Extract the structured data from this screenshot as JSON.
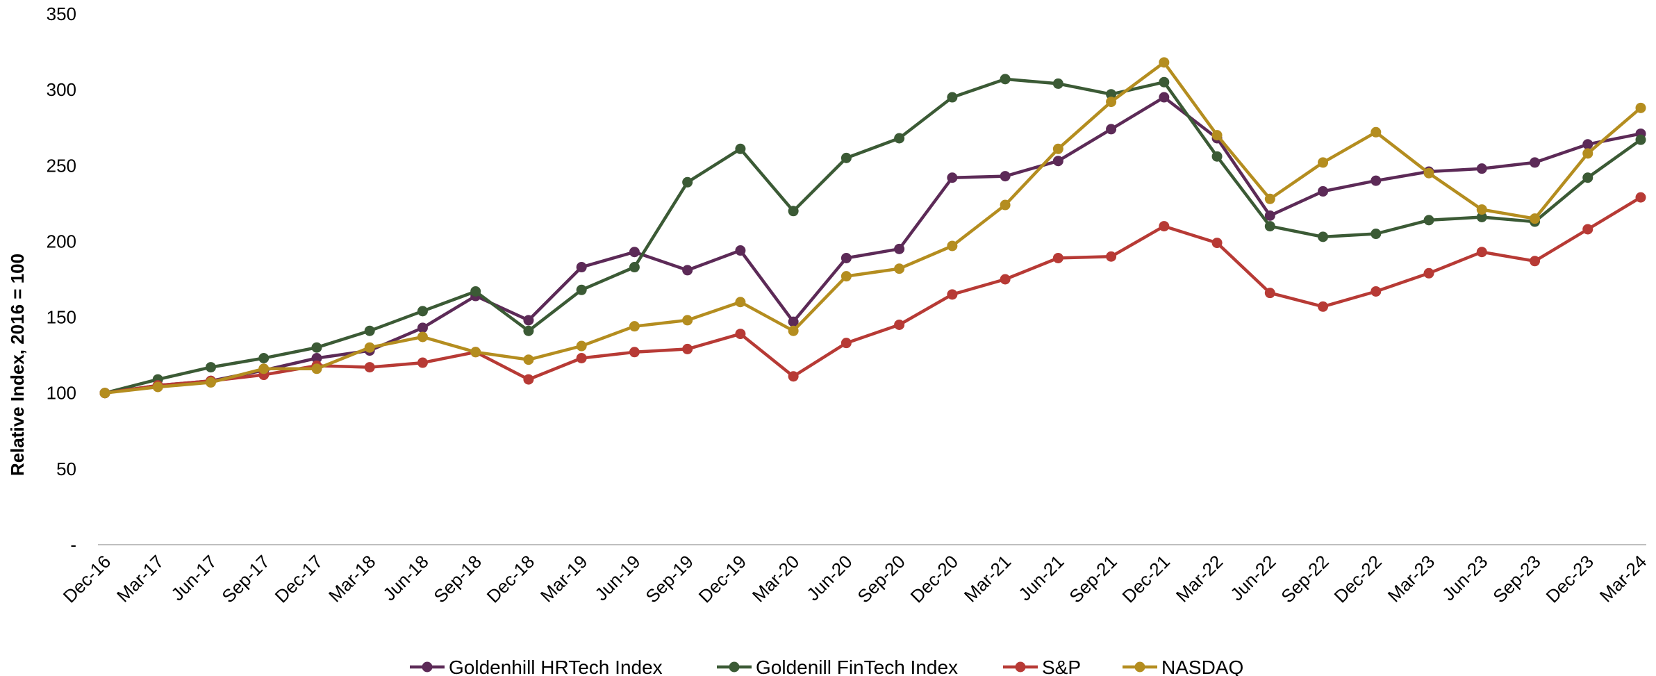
{
  "chart_data": {
    "type": "line",
    "title": "",
    "xlabel": "",
    "ylabel": "Relative Index, 2016 = 100",
    "ylim": [
      0,
      350
    ],
    "yticks": [
      {
        "value": 0,
        "label": "-"
      },
      {
        "value": 50,
        "label": "50"
      },
      {
        "value": 100,
        "label": "100"
      },
      {
        "value": 150,
        "label": "150"
      },
      {
        "value": 200,
        "label": "200"
      },
      {
        "value": 250,
        "label": "250"
      },
      {
        "value": 300,
        "label": "300"
      },
      {
        "value": 350,
        "label": "350"
      }
    ],
    "grid": false,
    "legend_position": "bottom",
    "categories": [
      "Dec-16",
      "Mar-17",
      "Jun-17",
      "Sep-17",
      "Dec-17",
      "Mar-18",
      "Jun-18",
      "Sep-18",
      "Dec-18",
      "Mar-19",
      "Jun-19",
      "Sep-19",
      "Dec-19",
      "Mar-20",
      "Jun-20",
      "Sep-20",
      "Dec-20",
      "Mar-21",
      "Jun-21",
      "Sep-21",
      "Dec-21",
      "Mar-22",
      "Jun-22",
      "Sep-22",
      "Dec-22",
      "Mar-23",
      "Jun-23",
      "Sep-23",
      "Dec-23",
      "Mar-24"
    ],
    "series": [
      {
        "name": "Goldenhill HRTech Index",
        "color": "#5c2a57",
        "values": [
          100,
          105,
          108,
          115,
          123,
          128,
          143,
          164,
          148,
          183,
          193,
          181,
          194,
          147,
          189,
          195,
          242,
          243,
          253,
          274,
          295,
          268,
          217,
          233,
          240,
          246,
          248,
          252,
          264,
          271
        ]
      },
      {
        "name": "Goldenill FinTech Index",
        "color": "#3b5a35",
        "values": [
          100,
          109,
          117,
          123,
          130,
          141,
          154,
          167,
          141,
          168,
          183,
          239,
          261,
          220,
          255,
          268,
          295,
          307,
          304,
          297,
          305,
          256,
          210,
          203,
          205,
          214,
          216,
          213,
          242,
          267
        ]
      },
      {
        "name": "S&P",
        "color": "#b73a35",
        "values": [
          100,
          105,
          108,
          112,
          118,
          117,
          120,
          127,
          109,
          123,
          127,
          129,
          139,
          111,
          133,
          145,
          165,
          175,
          189,
          190,
          210,
          199,
          166,
          157,
          167,
          179,
          193,
          187,
          208,
          229
        ]
      },
      {
        "name": "NASDAQ",
        "color": "#b48d1f",
        "values": [
          100,
          104,
          107,
          116,
          116,
          130,
          137,
          127,
          122,
          131,
          144,
          148,
          160,
          141,
          177,
          182,
          197,
          224,
          261,
          292,
          318,
          270,
          228,
          252,
          272,
          245,
          221,
          215,
          258,
          288
        ]
      }
    ]
  }
}
